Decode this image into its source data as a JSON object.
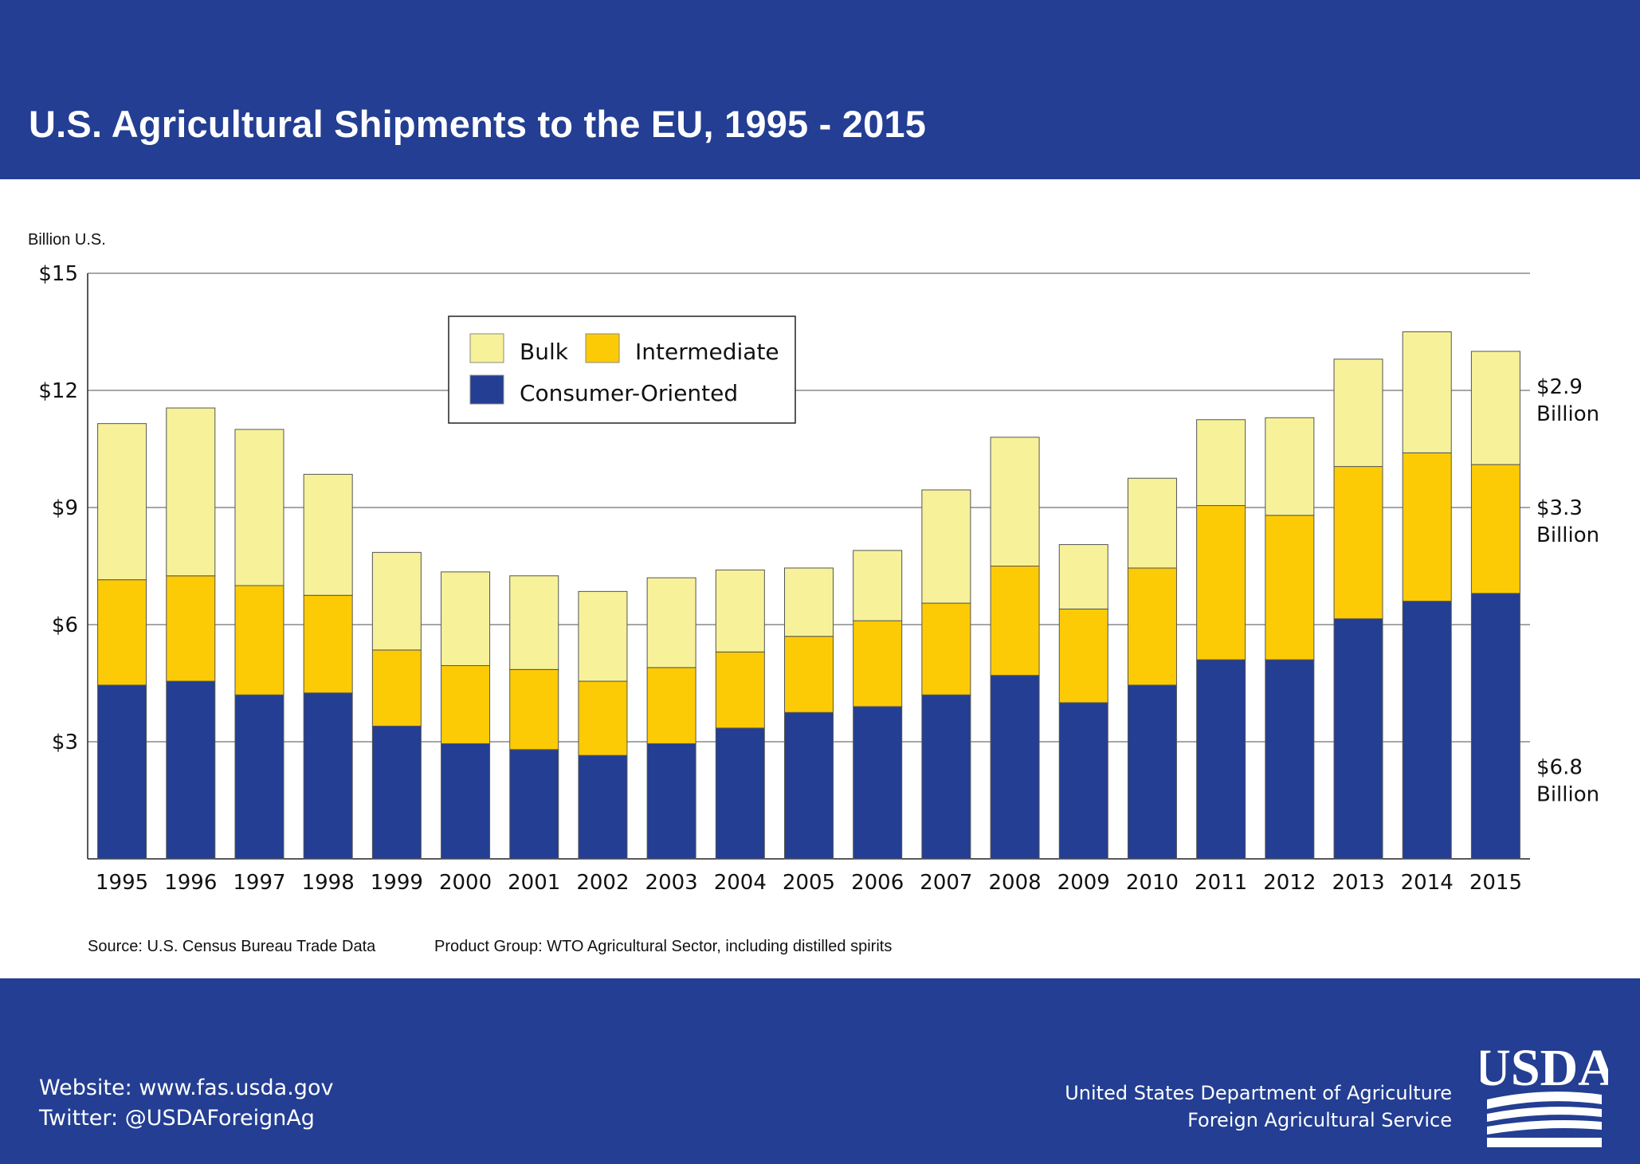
{
  "header": {
    "title": "U.S. Agricultural Shipments to the EU, 1995 - 2015"
  },
  "chart_data": {
    "type": "bar",
    "stacked": true,
    "title": "U.S. Agricultural Shipments to the EU, 1995 - 2015",
    "ylabel": "Billion U.S.",
    "xlabel": "",
    "ylim": [
      0,
      15
    ],
    "yticks": [
      3,
      6,
      9,
      12,
      15
    ],
    "ytick_labels": [
      "$3",
      "$6",
      "$9",
      "$12",
      "$15"
    ],
    "grid": true,
    "legend_position": "top-left",
    "categories": [
      "1995",
      "1996",
      "1997",
      "1998",
      "1999",
      "2000",
      "2001",
      "2002",
      "2003",
      "2004",
      "2005",
      "2006",
      "2007",
      "2008",
      "2009",
      "2010",
      "2011",
      "2012",
      "2013",
      "2014",
      "2015"
    ],
    "series": [
      {
        "name": "Consumer-Oriented",
        "color": "#233e92",
        "values": [
          4.45,
          4.55,
          4.2,
          4.25,
          3.4,
          2.95,
          2.8,
          2.65,
          2.95,
          3.35,
          3.75,
          3.9,
          4.2,
          4.7,
          4.0,
          4.45,
          5.1,
          5.1,
          6.15,
          6.6,
          6.8
        ]
      },
      {
        "name": "Intermediate",
        "color": "#fccb05",
        "values": [
          2.7,
          2.7,
          2.8,
          2.5,
          1.95,
          2.0,
          2.05,
          1.9,
          1.95,
          1.95,
          1.95,
          2.2,
          2.35,
          2.8,
          2.4,
          3.0,
          3.95,
          3.7,
          3.9,
          3.8,
          3.3
        ]
      },
      {
        "name": "Bulk",
        "color": "#f7f29a",
        "values": [
          4.0,
          4.3,
          4.0,
          3.1,
          2.5,
          2.4,
          2.4,
          2.3,
          2.3,
          2.1,
          1.75,
          1.8,
          2.9,
          3.3,
          1.65,
          2.3,
          2.2,
          2.5,
          2.75,
          3.1,
          2.9
        ]
      }
    ],
    "legend": [
      "Bulk",
      "Intermediate",
      "Consumer-Oriented"
    ],
    "annotations": [
      {
        "value_line1": "$2.9",
        "value_line2": "Billion"
      },
      {
        "value_line1": "$3.3",
        "value_line2": "Billion"
      },
      {
        "value_line1": "$6.8",
        "value_line2": "Billion"
      }
    ],
    "source_note": "Source: U.S. Census Bureau Trade Data",
    "product_note": "Product Group: WTO Agricultural Sector, including distilled spirits"
  },
  "footer": {
    "website": "Website: www.fas.usda.gov",
    "twitter": "Twitter: @USDAForeignAg",
    "agency_line1": "United States Department of Agriculture",
    "agency_line2": "Foreign Agricultural Service",
    "logo_text": "USDA"
  }
}
